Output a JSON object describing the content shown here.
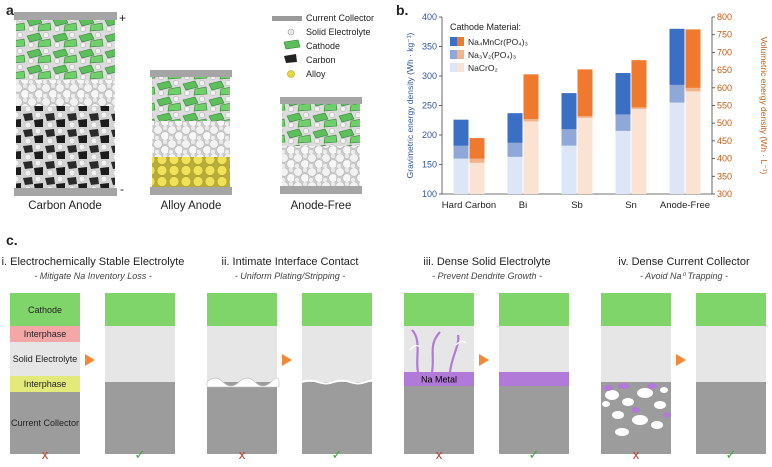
{
  "panels": {
    "a": "a.",
    "b": "b.",
    "c": "c."
  },
  "panel_a": {
    "legend": [
      {
        "label": "Current Collector",
        "icon": "collector-bar-icon",
        "color": "#9a9a9a"
      },
      {
        "label": "Solid Electrolyte",
        "icon": "white-sphere-icon",
        "color": "#e8e8e8"
      },
      {
        "label": "Cathode",
        "icon": "green-flake-icon",
        "color": "#5cbf5c"
      },
      {
        "label": "Carbon",
        "icon": "black-particle-icon",
        "color": "#222222"
      },
      {
        "label": "Alloy",
        "icon": "yellow-sphere-icon",
        "color": "#e8d83a"
      }
    ],
    "polarity": {
      "plus": "+",
      "minus": "-"
    },
    "captions": [
      "Carbon Anode",
      "Alloy Anode",
      "Anode-Free"
    ]
  },
  "chart_data": {
    "type": "bar",
    "categories": [
      "Hard Carbon",
      "Bi",
      "Sb",
      "Sn",
      "Anode-Free"
    ],
    "ylabel": "Gravimetric energy density (Wh · kg⁻¹)",
    "y2label": "Volumetric energy density (Wh · L⁻¹)",
    "ylim": [
      100,
      400
    ],
    "y2lim": [
      300,
      800
    ],
    "yticks": [
      "100",
      "150",
      "200",
      "250",
      "300",
      "350",
      "400"
    ],
    "y2ticks": [
      "300",
      "350",
      "400",
      "450",
      "500",
      "550",
      "600",
      "650",
      "700",
      "750",
      "800"
    ],
    "legend_title": "Cathode Material:",
    "legend": [
      {
        "label": "Na₄MnCr(PO₄)₃",
        "color": "#3a6fc4"
      },
      {
        "label": "Na₃V₂(PO₄)₃",
        "color": "#8fa8d8"
      },
      {
        "label": "NaCrO₂",
        "color": "#dde6f6"
      }
    ],
    "gravimetric_series": [
      {
        "name": "NaCrO₂",
        "values": [
          160,
          163,
          182,
          207,
          255
        ]
      },
      {
        "name": "Na₃V₂(PO₄)₃",
        "values": [
          182,
          187,
          210,
          235,
          285
        ]
      },
      {
        "name": "Na₄MnCr(PO₄)₃",
        "values": [
          226,
          237,
          271,
          305,
          380
        ]
      }
    ],
    "volumetric_series": [
      {
        "name": "NaCrO₂",
        "values": [
          388,
          505,
          515,
          540,
          590
        ]
      },
      {
        "name": "Na₃V₂(PO₄)₃",
        "values": [
          400,
          512,
          520,
          545,
          600
        ]
      },
      {
        "name": "Na₄MnCr(PO₄)₃",
        "values": [
          458,
          638,
          652,
          678,
          765
        ]
      }
    ],
    "colors": {
      "grav": [
        "#dde6f6",
        "#8fa8d8",
        "#3a6fc4"
      ],
      "vol": [
        "#fbe3d3",
        "#f4b48a",
        "#ef7a2e"
      ],
      "left_axis": "#2f5597",
      "right_axis": "#c55a11"
    }
  },
  "panel_c": {
    "sections": [
      {
        "title": "i. Electrochemically Stable Electrolyte",
        "subtitle": "- Mitigate Na Inventory Loss -"
      },
      {
        "title": "ii. Intimate Interface Contact",
        "subtitle": "- Uniform Plating/Stripping -"
      },
      {
        "title": "iii. Dense Solid Electrolyte",
        "subtitle": "- Prevent Dendrite Growth -"
      },
      {
        "title": "iv. Dense Current Collector",
        "subtitle": "- Avoid Na⁰ Trapping -"
      }
    ],
    "layers": {
      "cathode": "Cathode",
      "interphase_top": "Interphase",
      "solid_electrolyte": "Solid Electrolyte",
      "interphase_bottom": "Interphase",
      "current_collector": "Current Collector",
      "na_metal": "Na Metal"
    },
    "marks": {
      "bad": "x",
      "good": "✓"
    },
    "colors": {
      "cathode": "#7fd46a",
      "interphase_red": "#f4a7a7",
      "interphase_yellow": "#e4ea7a",
      "electrolyte": "#e6e6e6",
      "collector": "#9c9c9c",
      "na_metal": "#b27ad8",
      "arrow": "#f08a3a",
      "bad": "#c0392b",
      "good": "#3aa53a"
    }
  }
}
